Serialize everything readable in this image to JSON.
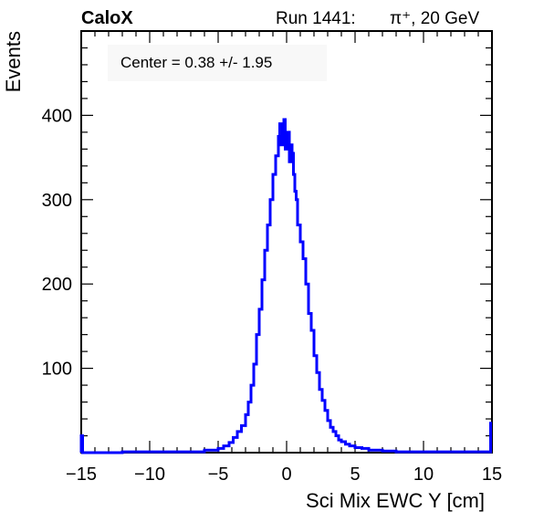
{
  "header": {
    "brand": "CaloX",
    "run_label": "Run 1441:",
    "particle": "π⁺, 20 GeV"
  },
  "annotation": "Center = 0.38 +/- 1.95",
  "colors": {
    "line": "#0000ff",
    "frame": "#000000",
    "annotation_bg": "#f8f8f8"
  },
  "chart_data": {
    "type": "line",
    "style": "step histogram",
    "xlabel": "Sci Mix EWC Y [cm]",
    "ylabel": "Events",
    "xlim": [
      -15,
      15
    ],
    "ylim": [
      0,
      500
    ],
    "xticks": [
      -15,
      -10,
      -5,
      0,
      5,
      10,
      15
    ],
    "xtick_labels": [
      "−15",
      "−10",
      "−5",
      "0",
      "5",
      "10",
      "15"
    ],
    "yticks": [
      100,
      200,
      300,
      400
    ],
    "ytick_labels": [
      "100",
      "200",
      "300",
      "400"
    ],
    "grid": false,
    "series": [
      {
        "x": [
          -15.0,
          -14.9,
          -12.0,
          -9.0,
          -7.0,
          -6.0,
          -5.0,
          -4.6,
          -4.2,
          -3.9,
          -3.6,
          -3.3,
          -3.0,
          -2.8,
          -2.6,
          -2.4,
          -2.2,
          -2.0,
          -1.8,
          -1.6,
          -1.4,
          -1.2,
          -1.0,
          -0.8,
          -0.6,
          -0.5,
          -0.4,
          -0.3,
          -0.2,
          -0.1,
          0.0,
          0.1,
          0.2,
          0.3,
          0.4,
          0.5,
          0.6,
          0.7,
          0.8,
          1.0,
          1.2,
          1.4,
          1.6,
          1.8,
          2.0,
          2.2,
          2.4,
          2.6,
          2.8,
          3.0,
          3.2,
          3.4,
          3.6,
          3.8,
          4.0,
          4.3,
          4.6,
          5.0,
          5.5,
          6.0,
          6.5,
          7.0,
          8.0,
          10.0,
          13.0,
          14.9,
          15.0
        ],
        "y": [
          20,
          0,
          1,
          1,
          1,
          3,
          5,
          8,
          12,
          18,
          25,
          32,
          45,
          60,
          80,
          105,
          140,
          170,
          205,
          240,
          270,
          300,
          330,
          352,
          375,
          390,
          365,
          385,
          395,
          360,
          370,
          380,
          345,
          365,
          355,
          330,
          310,
          300,
          270,
          250,
          230,
          200,
          165,
          145,
          115,
          95,
          75,
          62,
          50,
          38,
          30,
          25,
          20,
          15,
          13,
          10,
          8,
          6,
          5,
          3,
          3,
          2,
          1,
          1,
          1,
          35,
          35
        ]
      }
    ]
  }
}
